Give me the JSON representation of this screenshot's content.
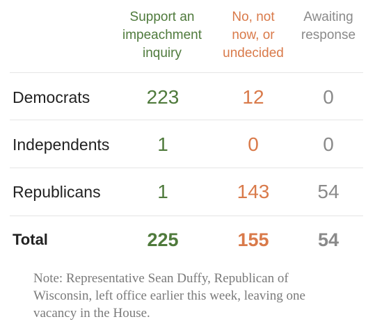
{
  "columns": {
    "support": "Support an\nimpeachment\ninquiry",
    "no": "No, not\nnow, or\nundecided",
    "awaiting": "Awaiting\nresponse"
  },
  "rows": [
    {
      "label": "Democrats",
      "support": "223",
      "no": "12",
      "awaiting": "0"
    },
    {
      "label": "Independents",
      "support": "1",
      "no": "0",
      "awaiting": "0"
    },
    {
      "label": "Republicans",
      "support": "1",
      "no": "143",
      "awaiting": "54"
    }
  ],
  "total": {
    "label": "Total",
    "support": "225",
    "no": "155",
    "awaiting": "54"
  },
  "note": "Note: Representative Sean Duffy, Republican of Wisconsin, left office earlier this week, leaving one vacancy in the House.",
  "colors": {
    "support": "#4f7a3c",
    "no": "#d97a4a",
    "awaiting": "#8a8a8a",
    "rule": "#e5e5e5"
  }
}
